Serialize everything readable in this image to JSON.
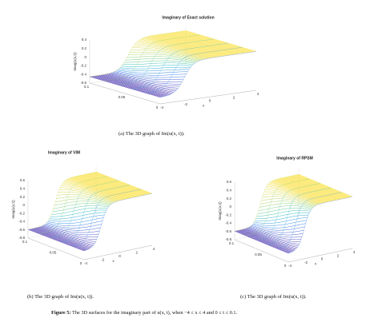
{
  "panels": [
    {
      "title": "Imaginary of Exact solution",
      "zlabel": "Imag(u(x,t))",
      "zticks": [
        0.4,
        0.2,
        0,
        -0.2,
        -0.4,
        -0.6
      ],
      "tticks": [
        0.1,
        0.05,
        0
      ],
      "xticks": [
        -4,
        -2,
        0,
        2,
        4
      ],
      "xlabel": "x",
      "caption": "(a) The 3D graph of Im(u(x, t))."
    },
    {
      "title": "Imaginary of VIM",
      "zlabel": "Imag(u(x,t))",
      "zticks": [
        0.6,
        0.4,
        0.2,
        0,
        -0.2,
        -0.4,
        -0.6,
        -0.8
      ],
      "tticks": [
        0.1,
        0.05,
        0
      ],
      "xticks": [
        -4,
        -2,
        0,
        2,
        4
      ],
      "xlabel": "x",
      "caption": "(b) The 3D graph of Im(u(x, t))."
    },
    {
      "title": "Imaginary of RPSM",
      "zlabel": "Imag(u(x,t))",
      "zticks": [
        0.6,
        0.4,
        0.2,
        0,
        -0.2,
        -0.4,
        -0.6,
        -0.8
      ],
      "tticks": [
        0.1,
        0.05,
        0
      ],
      "xticks": [
        -4,
        -2,
        0,
        2,
        4
      ],
      "xlabel": "x",
      "caption": "(c) The 3D graph of Im(u(x, t))."
    }
  ],
  "figure": {
    "label": "Figure 5:",
    "text": "The 3D surfaces for the imaginary part of u(x, t), when −4 ≤ x ≤ 4  and 0 ≤ t ≤ 0.1."
  }
}
